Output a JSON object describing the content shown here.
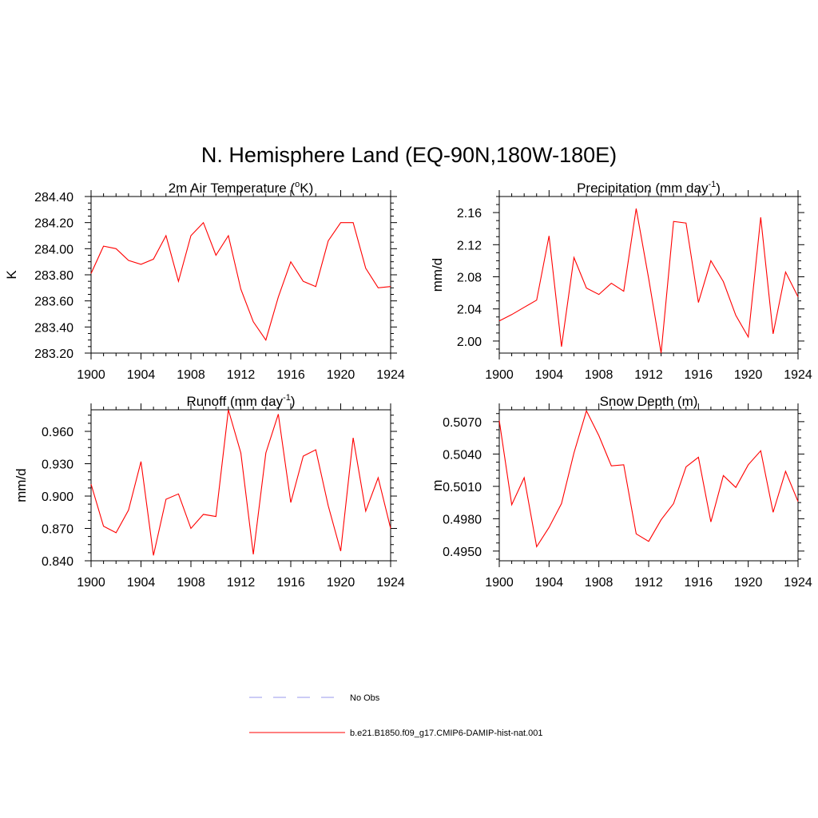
{
  "main_title": "N. Hemisphere Land (EQ-90N,180W-180E)",
  "chart_data": [
    {
      "type": "line",
      "title": "2m Air Temperature (",
      "title_sup": "o",
      "title_after": "K)",
      "ylabel": "K",
      "xlim": [
        1900,
        1924
      ],
      "ylim": [
        283.2,
        284.4
      ],
      "x_ticks": [
        1900,
        1904,
        1908,
        1912,
        1916,
        1920,
        1924
      ],
      "y_ticks": [
        "283.20",
        "283.40",
        "283.60",
        "283.80",
        "284.00",
        "284.20",
        "284.40"
      ],
      "y_tick_values": [
        283.2,
        283.4,
        283.6,
        283.8,
        284.0,
        284.2,
        284.4
      ],
      "series": [
        {
          "color": "#ff0000",
          "x": [
            1900,
            1901,
            1902,
            1903,
            1904,
            1905,
            1906,
            1907,
            1908,
            1909,
            1910,
            1911,
            1912,
            1913,
            1914,
            1915,
            1916,
            1917,
            1918,
            1919,
            1920,
            1921,
            1922,
            1923,
            1924
          ],
          "values": [
            283.81,
            284.02,
            284.0,
            283.91,
            283.88,
            283.92,
            284.1,
            283.75,
            284.1,
            284.2,
            283.95,
            284.1,
            283.69,
            283.44,
            283.3,
            283.63,
            283.9,
            283.75,
            283.71,
            284.06,
            284.2,
            284.2,
            283.85,
            283.7,
            283.71
          ]
        }
      ]
    },
    {
      "type": "line",
      "title": "Precipitation (mm day",
      "title_sup": "-1",
      "title_after": ")",
      "ylabel": "mm/d",
      "xlim": [
        1900,
        1924
      ],
      "ylim": [
        1.985,
        2.18
      ],
      "x_ticks": [
        1900,
        1904,
        1908,
        1912,
        1916,
        1920,
        1924
      ],
      "y_ticks": [
        "2.00",
        "2.04",
        "2.08",
        "2.12",
        "2.16"
      ],
      "y_tick_values": [
        2.0,
        2.04,
        2.08,
        2.12,
        2.16
      ],
      "series": [
        {
          "color": "#ff0000",
          "x": [
            1900,
            1901,
            1902,
            1903,
            1904,
            1905,
            1906,
            1907,
            1908,
            1909,
            1910,
            1911,
            1912,
            1913,
            1914,
            1915,
            1916,
            1917,
            1918,
            1919,
            1920,
            1921,
            1922,
            1923,
            1924
          ],
          "values": [
            2.025,
            2.033,
            2.042,
            2.051,
            2.131,
            1.993,
            2.104,
            2.066,
            2.058,
            2.072,
            2.062,
            2.165,
            2.078,
            1.985,
            2.149,
            2.147,
            2.048,
            2.1,
            2.074,
            2.032,
            2.005,
            2.154,
            2.009,
            2.086,
            2.055
          ]
        }
      ]
    },
    {
      "type": "line",
      "title": "Runoff (mm day",
      "title_sup": "-1",
      "title_after": ")",
      "ylabel": "mm/d",
      "xlim": [
        1900,
        1924
      ],
      "ylim": [
        0.84,
        0.98
      ],
      "x_ticks": [
        1900,
        1904,
        1908,
        1912,
        1916,
        1920,
        1924
      ],
      "y_ticks": [
        "0.840",
        "0.870",
        "0.900",
        "0.930",
        "0.960"
      ],
      "y_tick_values": [
        0.84,
        0.87,
        0.9,
        0.93,
        0.96
      ],
      "series": [
        {
          "color": "#ff0000",
          "x": [
            1900,
            1901,
            1902,
            1903,
            1904,
            1905,
            1906,
            1907,
            1908,
            1909,
            1910,
            1911,
            1912,
            1913,
            1914,
            1915,
            1916,
            1917,
            1918,
            1919,
            1920,
            1921,
            1922,
            1923,
            1924
          ],
          "values": [
            0.911,
            0.872,
            0.866,
            0.887,
            0.932,
            0.845,
            0.897,
            0.902,
            0.87,
            0.883,
            0.881,
            0.98,
            0.94,
            0.846,
            0.94,
            0.976,
            0.894,
            0.937,
            0.943,
            0.891,
            0.849,
            0.954,
            0.886,
            0.917,
            0.87
          ]
        }
      ]
    },
    {
      "type": "line",
      "title": "Snow Depth (m)",
      "title_sup": "",
      "title_after": "",
      "ylabel": "m",
      "xlim": [
        1900,
        1924
      ],
      "ylim": [
        0.4941,
        0.5081
      ],
      "x_ticks": [
        1900,
        1904,
        1908,
        1912,
        1916,
        1920,
        1924
      ],
      "y_ticks": [
        "0.4950",
        "0.4980",
        "0.5010",
        "0.5040",
        "0.5070"
      ],
      "y_tick_values": [
        0.495,
        0.498,
        0.501,
        0.504,
        0.507
      ],
      "series": [
        {
          "color": "#ff0000",
          "x": [
            1900,
            1901,
            1902,
            1903,
            1904,
            1905,
            1906,
            1907,
            1908,
            1909,
            1910,
            1911,
            1912,
            1913,
            1914,
            1915,
            1916,
            1917,
            1918,
            1919,
            1920,
            1921,
            1922,
            1923,
            1924
          ],
          "values": [
            0.5071,
            0.4993,
            0.5018,
            0.4954,
            0.4972,
            0.4994,
            0.5041,
            0.508,
            0.5057,
            0.5029,
            0.503,
            0.4966,
            0.4959,
            0.4979,
            0.4994,
            0.5028,
            0.5037,
            0.4977,
            0.502,
            0.5009,
            0.503,
            0.5043,
            0.4986,
            0.5024,
            0.4996
          ]
        }
      ]
    }
  ],
  "legend": {
    "items": [
      {
        "label": "No Obs",
        "color": "#9999ee",
        "dash": true
      },
      {
        "label": "b.e21.B1850.f09_g17.CMIP6-DAMIP-hist-nat.001",
        "color": "#ff0000",
        "dash": false
      }
    ]
  }
}
